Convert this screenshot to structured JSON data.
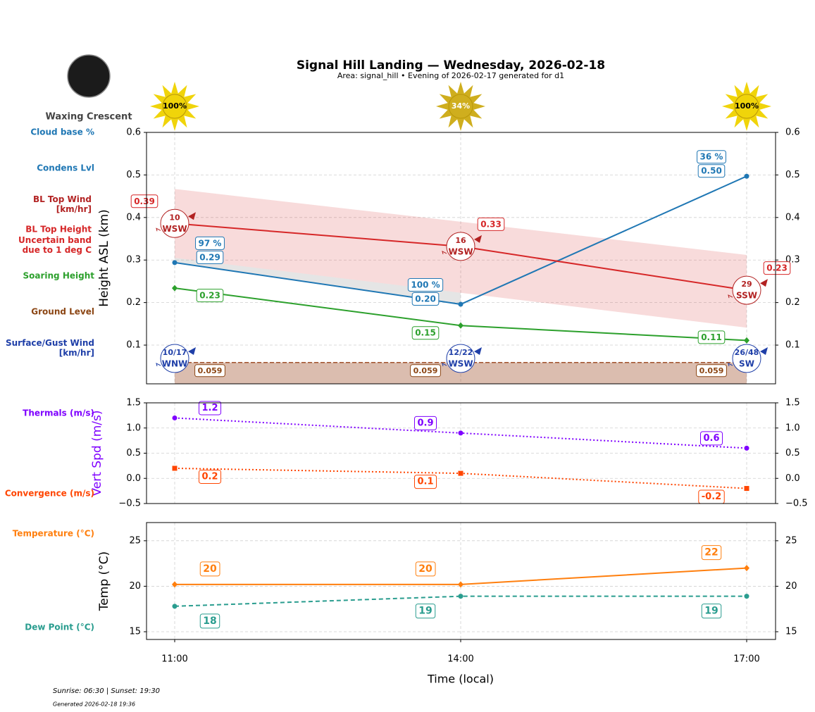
{
  "header": {
    "title": "Signal Hill Landing — Wednesday, 2026-02-18",
    "subtitle": "Area: signal_hill • Evening of 2026-02-17 generated for d1",
    "moon_phase": "Waxing Crescent",
    "sunshine": {
      "values": [
        100,
        34,
        100
      ],
      "value_labels": [
        "100%",
        "34%",
        "100%"
      ]
    }
  },
  "chart_data": [
    {
      "type": "line",
      "ylabel": "Height ASL (km)",
      "ylim": [
        0.009,
        0.6
      ],
      "yticks": [
        0.1,
        0.2,
        0.3,
        0.4,
        0.5,
        0.6
      ],
      "grid": true,
      "series": [
        {
          "name": "Cloud base %",
          "style": "label",
          "color": "#1f77b4",
          "values": [
            97,
            100,
            36
          ],
          "value_labels": [
            "97 %",
            "100 %",
            "36 %"
          ]
        },
        {
          "name": "Condens Lvl",
          "style": "line",
          "marker": "circle",
          "color": "#1f77b4",
          "values": [
            0.294,
            0.196,
            0.497
          ],
          "value_labels": [
            "0.29",
            "0.20",
            "0.50"
          ]
        },
        {
          "name": "BL Top Wind\n[km/hr]",
          "style": "wind",
          "color": "#b22222",
          "values": [
            10,
            16,
            29
          ],
          "directions": [
            "WSW",
            "WSW",
            "SSW"
          ]
        },
        {
          "name": "BL Top Height",
          "style": "line",
          "color": "#d62728",
          "values": [
            0.386,
            0.332,
            0.229
          ],
          "value_labels": [
            "0.39",
            "0.33",
            "0.23"
          ]
        },
        {
          "name": "Uncertain band\ndue to 1 deg C",
          "style": "band",
          "color": "#d62728",
          "upper": [
            0.467,
            0.39,
            0.312
          ],
          "lower": [
            0.305,
            0.223,
            0.141
          ]
        },
        {
          "name": "Soaring Height",
          "style": "line",
          "marker": "diamond",
          "color": "#2ca02c",
          "values": [
            0.234,
            0.146,
            0.111
          ],
          "value_labels": [
            "0.23",
            "0.15",
            "0.11"
          ]
        },
        {
          "name": "Ground Level",
          "style": "ground",
          "color": "#8b4513",
          "values": [
            0.059,
            0.059,
            0.059
          ]
        },
        {
          "name": "Surface/Gust Wind\n[km/hr]",
          "style": "wind",
          "color": "#1f3fa8",
          "values": [
            10,
            12,
            26
          ],
          "gusts": [
            17,
            22,
            48
          ],
          "value_labels": [
            "10/17",
            "12/22",
            "26/48"
          ],
          "directions": [
            "WNW",
            "WSW",
            "SW"
          ]
        }
      ]
    },
    {
      "type": "line",
      "ylabel": "Vert Spd (m/s)",
      "ylabel_color": "#7f00ff",
      "ylim": [
        -0.5,
        1.5
      ],
      "yticks": [
        {
          "value": -0.5,
          "label": "−0.5"
        },
        {
          "value": 0,
          "label": "0.0"
        },
        0.5,
        {
          "value": 1,
          "label": "1.0"
        },
        1.5
      ],
      "grid": true,
      "series": [
        {
          "name": "Thermals (m/s)",
          "style": "line",
          "marker": "circle",
          "dash": "dotted",
          "color": "#7f00ff",
          "values": [
            1.2,
            0.9,
            0.6
          ]
        },
        {
          "name": "Convergence (m/s)",
          "style": "line",
          "marker": "square",
          "dash": "dotted",
          "color": "#ff4500",
          "values": [
            0.2,
            0.1,
            -0.2
          ]
        }
      ]
    },
    {
      "type": "line",
      "ylabel": "Temp (°C)",
      "xlabel": "Time (local)",
      "categories": [
        "11:00",
        "14:00",
        "17:00"
      ],
      "ylim": [
        14.15,
        27
      ],
      "yticks": [
        15,
        20,
        25
      ],
      "grid": true,
      "series": [
        {
          "name": "Temperature (°C)",
          "style": "line",
          "marker": "diamond",
          "color": "#ff7f0e",
          "values": [
            20.2,
            20.2,
            22
          ],
          "value_labels": [
            "20",
            "20",
            "22"
          ]
        },
        {
          "name": "Dew Point (°C)",
          "style": "line",
          "marker": "circle",
          "dash": "dashed",
          "color": "#2a9d8f",
          "values": [
            17.8,
            18.9,
            18.9
          ],
          "value_labels": [
            "18",
            "19",
            "19"
          ]
        }
      ]
    }
  ],
  "footer": {
    "sun_times": "Sunrise: 06:30 | Sunset: 19:30",
    "generated": "Generated 2026-02-18 19:36"
  }
}
